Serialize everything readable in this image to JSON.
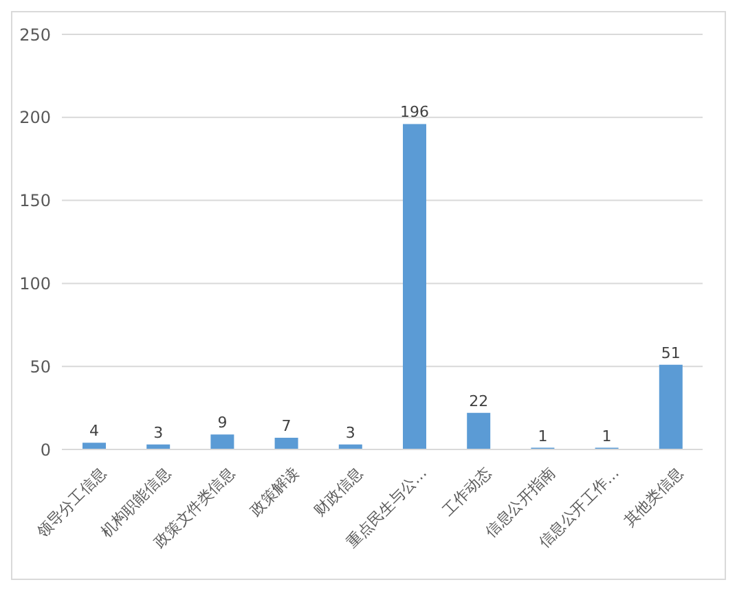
{
  "chart_data": {
    "type": "bar",
    "categories": [
      "领导分工信息",
      "机构职能信息",
      "政策文件类信息",
      "政策解读",
      "财政信息",
      "重点民生与公…",
      "工作动态",
      "信息公开指南",
      "信息公开工作…",
      "其他类信息"
    ],
    "values": [
      4,
      3,
      9,
      7,
      3,
      196,
      22,
      1,
      1,
      51
    ],
    "color": "#5b9bd5",
    "ylim": [
      0,
      250
    ],
    "yticks": [
      0,
      50,
      100,
      150,
      200,
      250
    ],
    "grid": "y",
    "data_labels": true
  }
}
